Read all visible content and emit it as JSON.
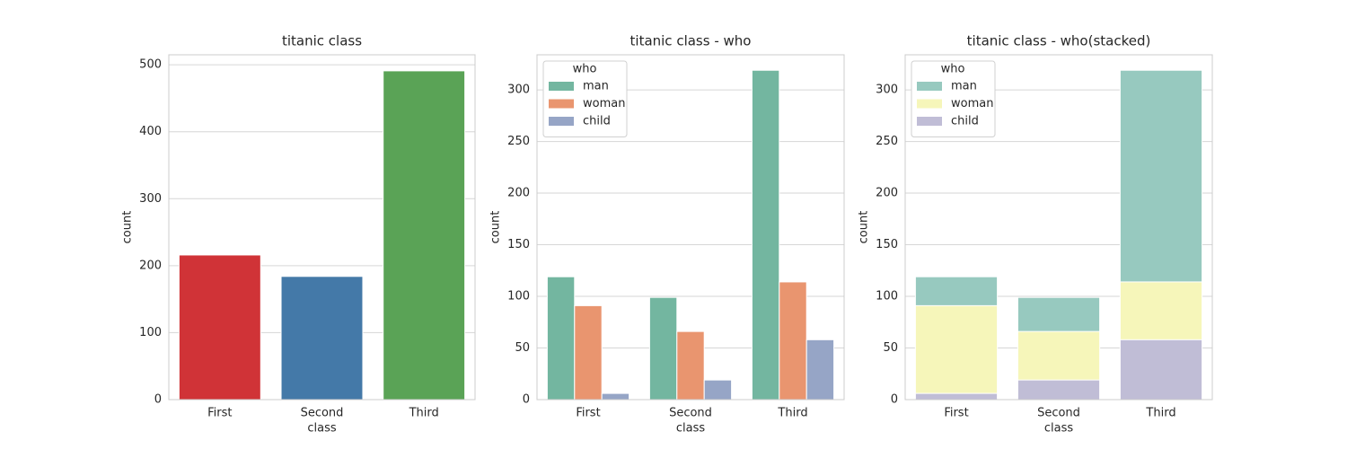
{
  "chart_data": [
    {
      "type": "bar",
      "title": "titanic class",
      "x_label": "class",
      "y_label": "count",
      "categories": [
        "First",
        "Second",
        "Third"
      ],
      "values": [
        216,
        184,
        491
      ],
      "colors": [
        "#d03337",
        "#4479a8",
        "#5aa356"
      ],
      "ylim": [
        0,
        515
      ],
      "yticks": [
        0,
        100,
        200,
        300,
        400,
        500
      ],
      "grid": true
    },
    {
      "type": "grouped_bar",
      "title": "titanic class - who",
      "x_label": "class",
      "y_label": "count",
      "categories": [
        "First",
        "Second",
        "Third"
      ],
      "series": [
        {
          "name": "man",
          "color": "#73b6a0",
          "values": [
            119,
            99,
            319
          ]
        },
        {
          "name": "woman",
          "color": "#e9956f",
          "values": [
            91,
            66,
            114
          ]
        },
        {
          "name": "child",
          "color": "#96a5c6",
          "values": [
            6,
            19,
            58
          ]
        }
      ],
      "legend_title": "who",
      "legend": "upper left",
      "ylim": [
        0,
        334
      ],
      "yticks": [
        0,
        50,
        100,
        150,
        200,
        250,
        300
      ],
      "grid": true
    },
    {
      "type": "overlaid_bar",
      "title": "titanic class - who(stacked)",
      "x_label": "class",
      "y_label": "count",
      "categories": [
        "First",
        "Second",
        "Third"
      ],
      "series": [
        {
          "name": "man",
          "color": "#97c9bf",
          "values": [
            119,
            99,
            319
          ]
        },
        {
          "name": "woman",
          "color": "#f6f6ba",
          "values": [
            91,
            66,
            114
          ]
        },
        {
          "name": "child",
          "color": "#c0bdd6",
          "values": [
            6,
            19,
            58
          ]
        }
      ],
      "legend_title": "who",
      "legend": "upper left",
      "ylim": [
        0,
        334
      ],
      "yticks": [
        0,
        50,
        100,
        150,
        200,
        250,
        300
      ],
      "grid": true
    }
  ]
}
